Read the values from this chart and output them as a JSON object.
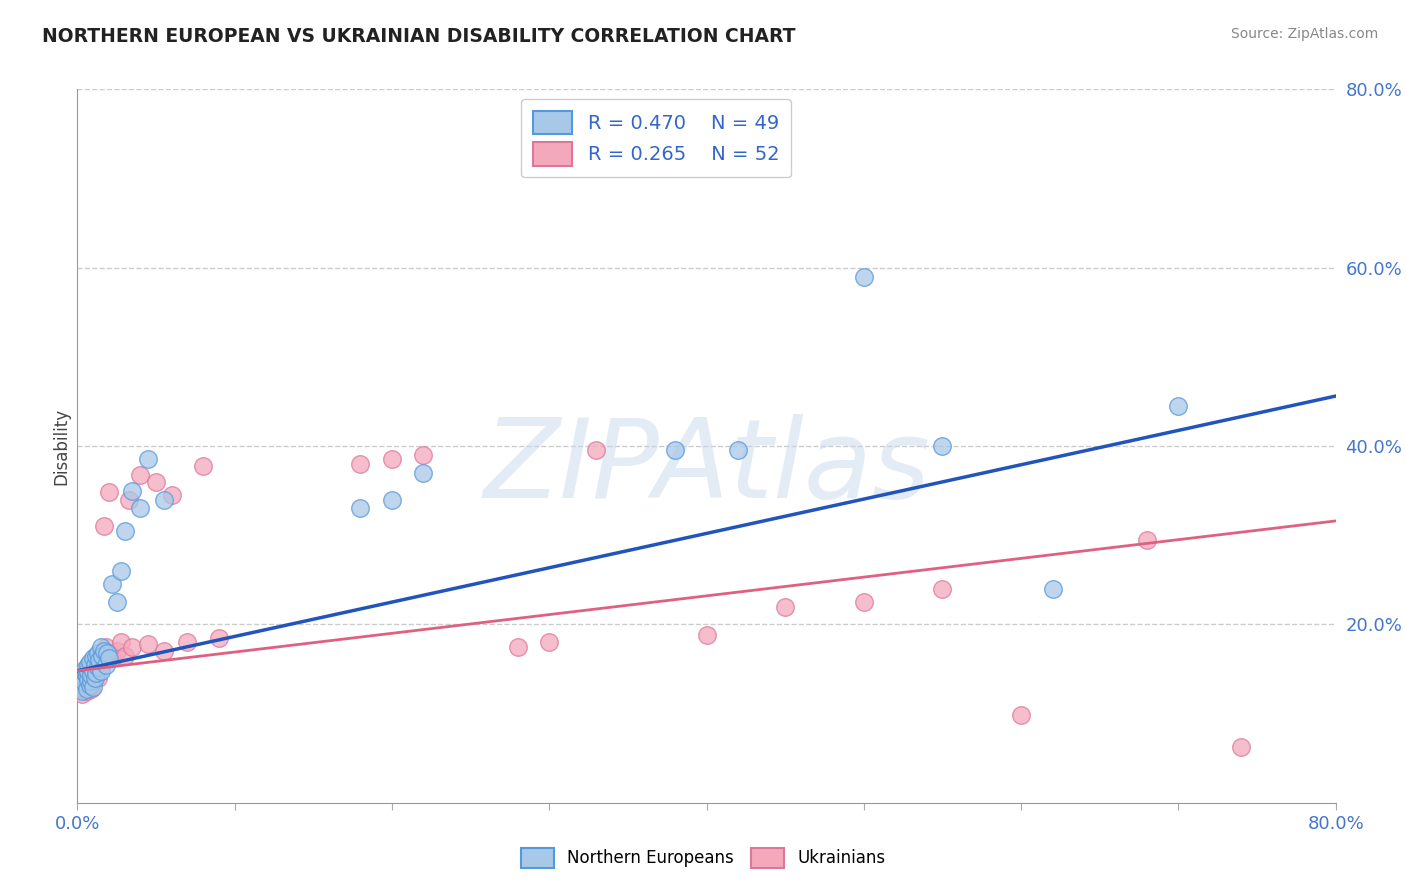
{
  "title": "NORTHERN EUROPEAN VS UKRAINIAN DISABILITY CORRELATION CHART",
  "source": "Source: ZipAtlas.com",
  "ylabel": "Disability",
  "xlim": [
    0.0,
    0.8
  ],
  "ylim": [
    0.0,
    0.8
  ],
  "ytick_positions": [
    0.2,
    0.4,
    0.6,
    0.8
  ],
  "ytick_labels": [
    "20.0%",
    "40.0%",
    "60.0%",
    "80.0%"
  ],
  "blue_R": 0.47,
  "blue_N": 49,
  "pink_R": 0.265,
  "pink_N": 52,
  "blue_color": "#a8c8e8",
  "pink_color": "#f4a8bc",
  "blue_line_color": "#2255bb",
  "pink_line_color": "#e06080",
  "blue_edge_color": "#5599dd",
  "pink_edge_color": "#dd7799",
  "legend_color": "#3366cc",
  "watermark": "ZIPAtlas",
  "background_color": "#ffffff",
  "grid_color": "#cccccc",
  "blue_line_intercept": 0.148,
  "blue_line_slope": 0.385,
  "pink_line_intercept": 0.148,
  "pink_line_slope": 0.21,
  "blue_x": [
    0.002,
    0.003,
    0.004,
    0.004,
    0.005,
    0.005,
    0.006,
    0.006,
    0.007,
    0.007,
    0.007,
    0.008,
    0.008,
    0.009,
    0.009,
    0.01,
    0.01,
    0.01,
    0.011,
    0.011,
    0.012,
    0.012,
    0.013,
    0.013,
    0.014,
    0.015,
    0.015,
    0.016,
    0.017,
    0.018,
    0.019,
    0.02,
    0.022,
    0.025,
    0.028,
    0.03,
    0.035,
    0.04,
    0.045,
    0.055,
    0.18,
    0.2,
    0.22,
    0.38,
    0.42,
    0.5,
    0.55,
    0.62,
    0.7
  ],
  "blue_y": [
    0.13,
    0.125,
    0.14,
    0.135,
    0.145,
    0.15,
    0.128,
    0.142,
    0.138,
    0.148,
    0.155,
    0.132,
    0.158,
    0.136,
    0.143,
    0.13,
    0.148,
    0.162,
    0.14,
    0.155,
    0.145,
    0.165,
    0.152,
    0.168,
    0.16,
    0.175,
    0.148,
    0.165,
    0.17,
    0.155,
    0.168,
    0.162,
    0.245,
    0.225,
    0.26,
    0.305,
    0.35,
    0.33,
    0.385,
    0.34,
    0.33,
    0.34,
    0.37,
    0.395,
    0.395,
    0.59,
    0.4,
    0.24,
    0.445
  ],
  "pink_x": [
    0.002,
    0.003,
    0.003,
    0.004,
    0.005,
    0.005,
    0.006,
    0.006,
    0.007,
    0.007,
    0.008,
    0.008,
    0.009,
    0.009,
    0.01,
    0.01,
    0.011,
    0.012,
    0.013,
    0.014,
    0.015,
    0.016,
    0.017,
    0.018,
    0.02,
    0.022,
    0.025,
    0.028,
    0.03,
    0.033,
    0.035,
    0.04,
    0.045,
    0.05,
    0.055,
    0.06,
    0.07,
    0.08,
    0.09,
    0.18,
    0.2,
    0.22,
    0.28,
    0.3,
    0.33,
    0.4,
    0.45,
    0.5,
    0.55,
    0.6,
    0.68,
    0.74
  ],
  "pink_y": [
    0.128,
    0.133,
    0.122,
    0.138,
    0.142,
    0.148,
    0.125,
    0.14,
    0.135,
    0.152,
    0.13,
    0.145,
    0.128,
    0.142,
    0.138,
    0.155,
    0.145,
    0.152,
    0.14,
    0.158,
    0.165,
    0.155,
    0.31,
    0.175,
    0.348,
    0.162,
    0.17,
    0.18,
    0.165,
    0.34,
    0.175,
    0.368,
    0.178,
    0.36,
    0.17,
    0.345,
    0.18,
    0.378,
    0.185,
    0.38,
    0.385,
    0.39,
    0.175,
    0.18,
    0.395,
    0.188,
    0.22,
    0.225,
    0.24,
    0.098,
    0.295,
    0.062
  ]
}
